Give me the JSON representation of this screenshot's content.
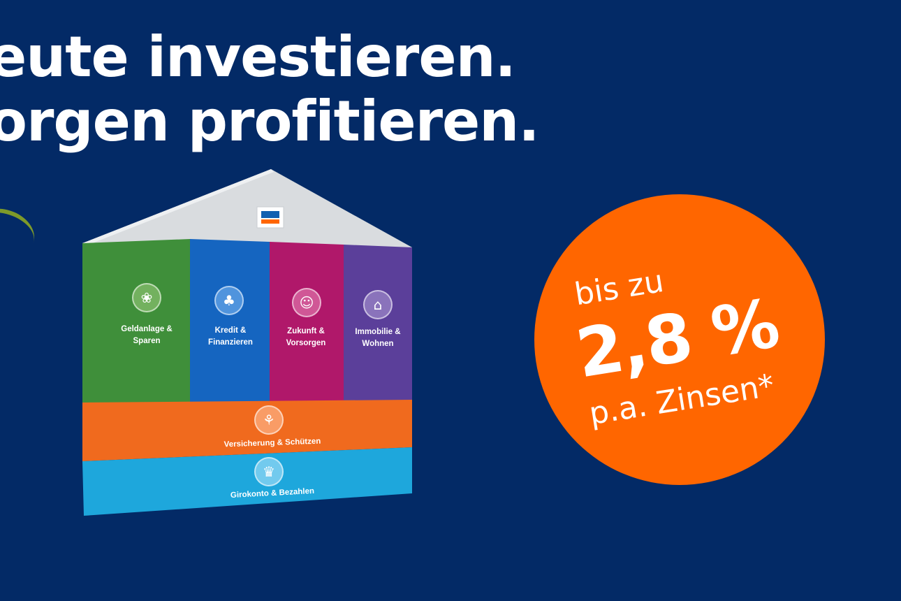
{
  "headline": {
    "line1": "eute investieren.",
    "line2": "orgen profitieren."
  },
  "colors": {
    "background": "#032a66",
    "badge": "#ff6600",
    "pillar_green": "#3f8f3a",
    "pillar_blue": "#1565c0",
    "pillar_magenta": "#b0186a",
    "pillar_purple": "#5b3f9a",
    "band_orange": "#f06a1e",
    "band_cyan": "#1ea7dc"
  },
  "house": {
    "logo_icon": "volksbank-logo-icon",
    "pillars": [
      {
        "icon": "plant-icon",
        "line1": "Geldanlage &",
        "line2": "Sparen"
      },
      {
        "icon": "tree-icon",
        "line1": "Kredit &",
        "line2": "Finanzieren"
      },
      {
        "icon": "family-icon",
        "line1": "Zukunft &",
        "line2": "Vorsorgen"
      },
      {
        "icon": "house-icon",
        "line1": "Immobilie &",
        "line2": "Wohnen"
      }
    ],
    "bands": [
      {
        "icon": "shield-family-icon",
        "label": "Versicherung & Schützen"
      },
      {
        "icon": "crown-icon",
        "label": "Girokonto & Bezahlen"
      }
    ]
  },
  "badge": {
    "prefix": "bis zu",
    "value": "2,8 %",
    "suffix": "p.a. Zinsen*"
  }
}
